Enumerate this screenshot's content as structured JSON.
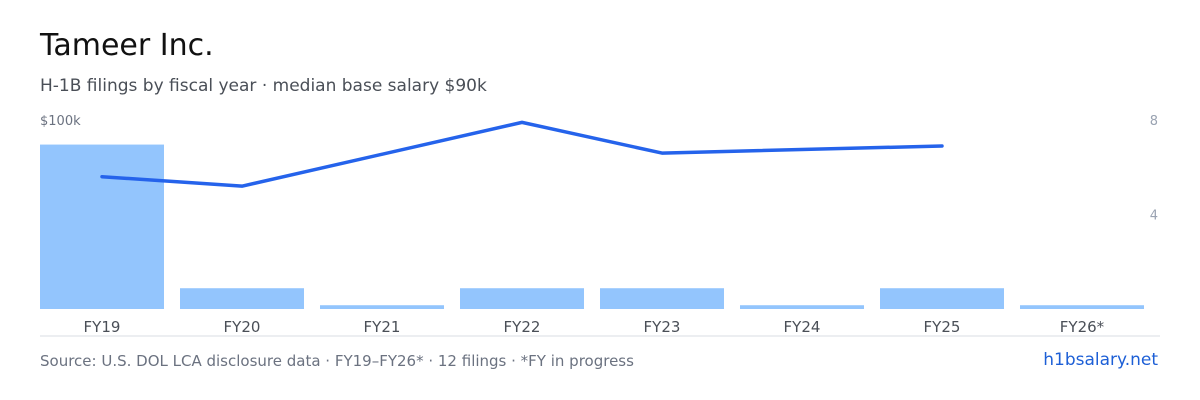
{
  "header": {
    "title": "Tameer Inc.",
    "subtitle": "H-1B filings by fiscal year · median base salary $90k"
  },
  "footer": {
    "source": "Source: U.S. DOL LCA disclosure data · FY19–FY26* · 12 filings · *FY in progress",
    "brand": "h1bsalary.net"
  },
  "colors": {
    "bar": "#93c5fd",
    "line": "#2563eb",
    "baseline": "#d9dde3"
  },
  "chart_data": {
    "type": "bar",
    "categories": [
      "FY19",
      "FY20",
      "FY21",
      "FY22",
      "FY23",
      "FY24",
      "FY25",
      "FY26*"
    ],
    "series": [
      {
        "type": "bar",
        "axis": "left",
        "values": [
          87,
          11,
          2,
          11,
          11,
          2,
          11,
          2
        ]
      },
      {
        "type": "line",
        "axis": "right",
        "values": [
          5.6,
          5.2,
          null,
          7.9,
          6.6,
          null,
          6.9,
          null
        ]
      }
    ],
    "y_left": {
      "max_label": "$100k",
      "range": [
        0,
        100
      ]
    },
    "y_right": {
      "tick_labels": [
        "8",
        "4"
      ],
      "ticks": [
        8,
        4
      ],
      "range": [
        0,
        8
      ]
    }
  }
}
